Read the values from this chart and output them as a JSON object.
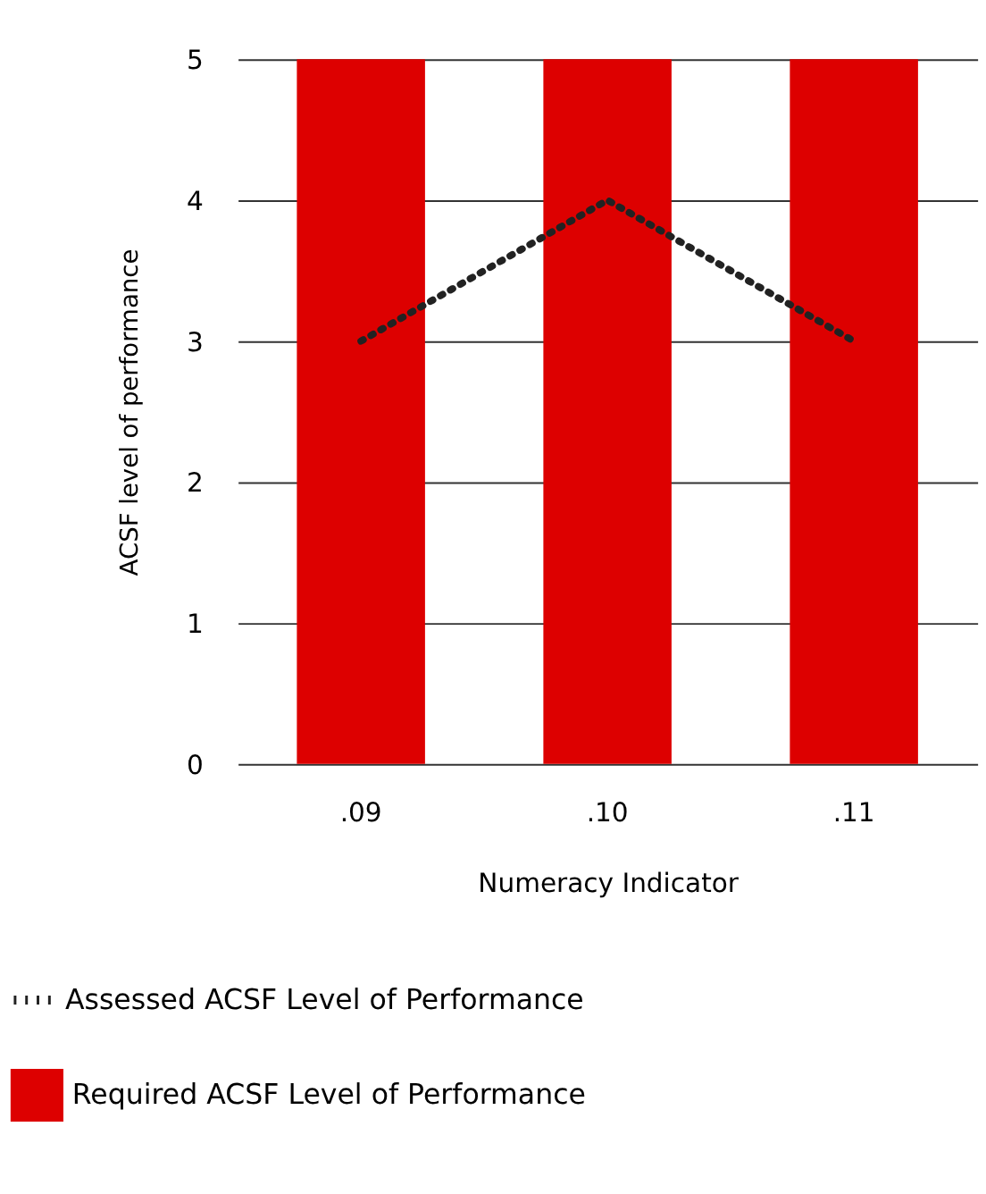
{
  "chart_data": {
    "type": "bar",
    "categories": [
      ".09",
      ".10",
      ".11"
    ],
    "series": [
      {
        "name": "Required ACSF Level of Performance",
        "color": "#dd0000",
        "values": [
          5,
          5,
          5
        ]
      },
      {
        "name": "Assessed ACSF Level of Performance",
        "type": "line",
        "color": "#222222",
        "line_style": "dotted",
        "values": [
          3,
          4,
          3
        ]
      }
    ],
    "ylim": [
      0,
      5
    ],
    "yticks": [
      0,
      1,
      2,
      3,
      4,
      5
    ],
    "grid": "y",
    "legend": "bottom",
    "xlabel": "Numeracy Indicator",
    "ylabel": "ACSF level of performance"
  }
}
